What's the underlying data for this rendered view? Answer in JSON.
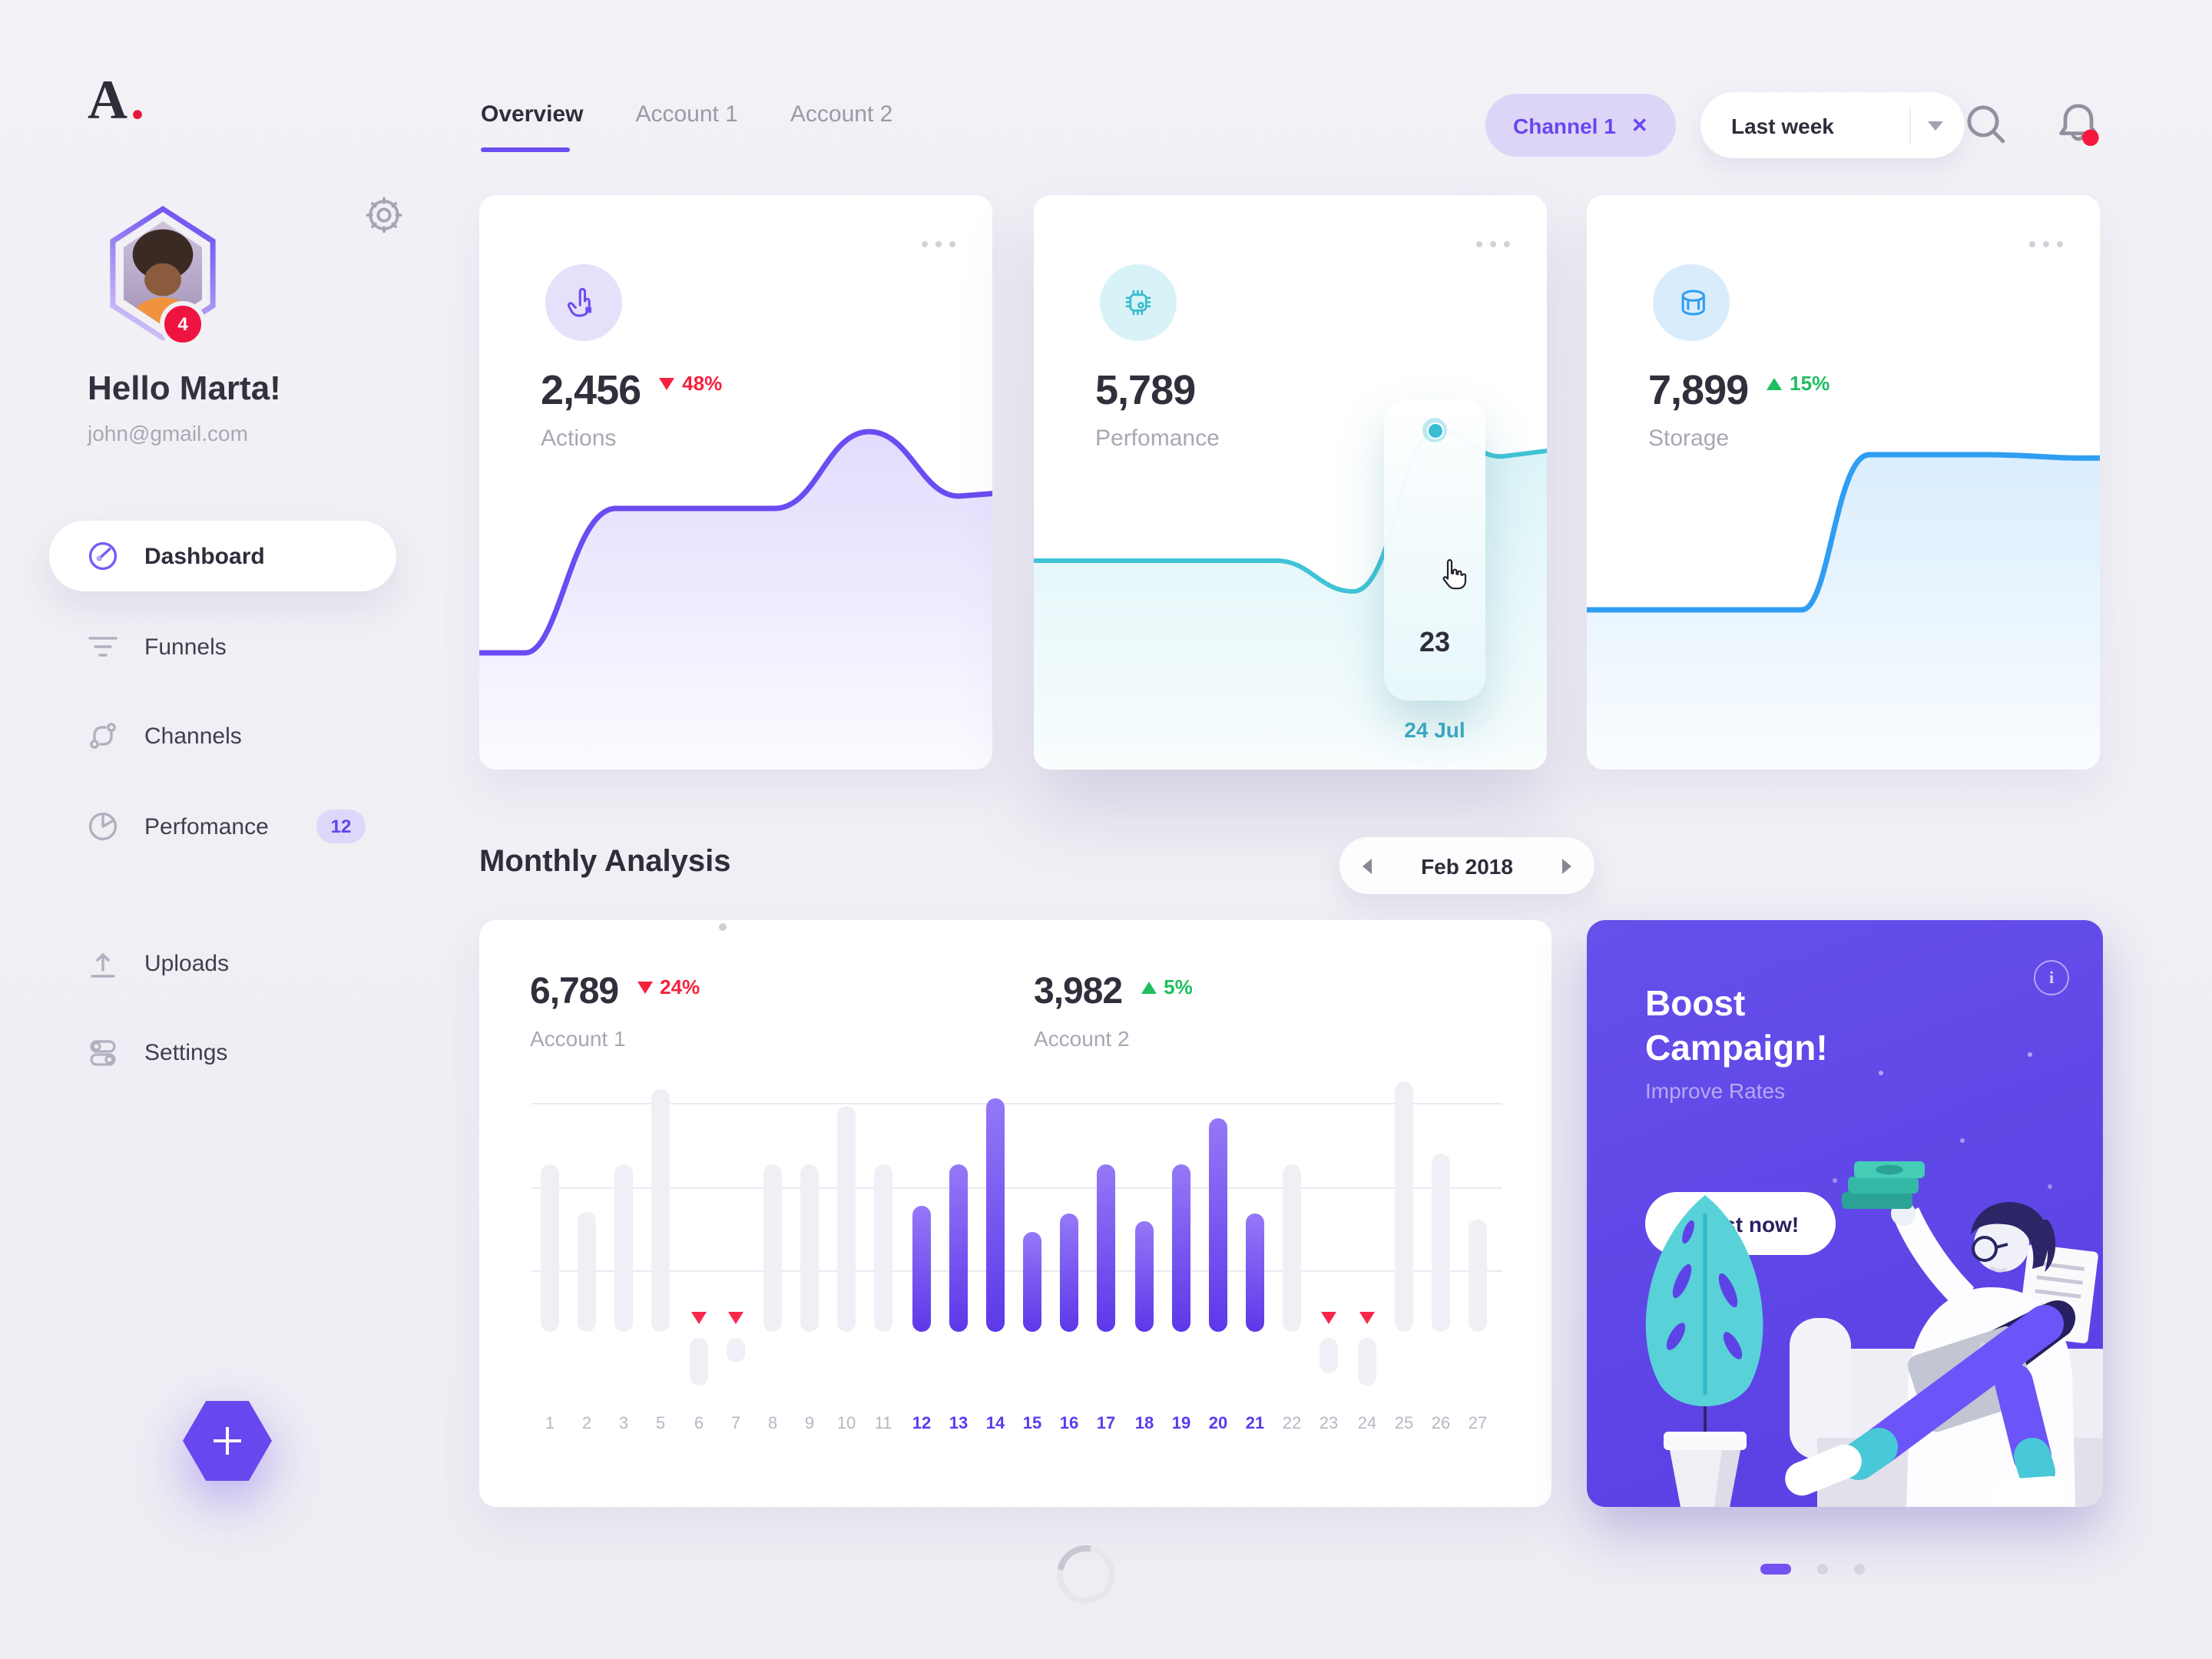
{
  "colors": {
    "accent": "#6a4cf1",
    "teal": "#45c6d8",
    "blue": "#2f9df2",
    "red": "#f5223d",
    "green": "#1fbe5f",
    "campaign_bg": "#5e44e6"
  },
  "brand": {
    "logo": "A",
    "dot": "."
  },
  "sidebar": {
    "greeting": "Hello Marta!",
    "email": "john@gmail.com",
    "avatar_badge": "4",
    "nav": [
      {
        "label": "Dashboard",
        "active": true
      },
      {
        "label": "Funnels"
      },
      {
        "label": "Channels"
      },
      {
        "label": "Perfomance",
        "badge": "12"
      },
      {
        "label": "Uploads"
      },
      {
        "label": "Settings"
      }
    ]
  },
  "topbar": {
    "tabs": [
      {
        "label": "Overview",
        "active": true
      },
      {
        "label": "Account 1"
      },
      {
        "label": "Account 2"
      }
    ],
    "filter_chip": {
      "label": "Channel 1",
      "close": "✕"
    },
    "period_select": {
      "value": "Last week"
    }
  },
  "stat_cards": [
    {
      "value": "2,456",
      "delta": "48%",
      "delta_dir": "down",
      "label": "Actions"
    },
    {
      "value": "5,789",
      "label": "Perfomance",
      "tooltip": {
        "value": "23",
        "date": "24 Jul"
      }
    },
    {
      "value": "7,899",
      "delta": "15%",
      "delta_dir": "up",
      "label": "Storage"
    }
  ],
  "monthly": {
    "title": "Monthly Analysis",
    "period": "Feb 2018",
    "accounts": [
      {
        "value": "6,789",
        "delta": "24%",
        "delta_dir": "down",
        "label": "Account 1"
      },
      {
        "value": "3,982",
        "delta": "5%",
        "delta_dir": "up",
        "label": "Account 2"
      }
    ],
    "chart_data": {
      "type": "bar",
      "unit": "percent_of_max_height",
      "gridlines": 3,
      "bars": [
        {
          "day": "1",
          "value": 67
        },
        {
          "day": "2",
          "value": 48
        },
        {
          "day": "3",
          "value": 67
        },
        {
          "day": "5",
          "value": 97
        },
        {
          "day": "6",
          "value": -19,
          "marker": true
        },
        {
          "day": "7",
          "value": -10,
          "marker": true
        },
        {
          "day": "8",
          "value": 67
        },
        {
          "day": "9",
          "value": 67
        },
        {
          "day": "10",
          "value": 90
        },
        {
          "day": "11",
          "value": 67
        },
        {
          "day": "12",
          "value": 50,
          "highlight": true
        },
        {
          "day": "13",
          "value": 67,
          "highlight": true
        },
        {
          "day": "14",
          "value": 93,
          "highlight": true
        },
        {
          "day": "15",
          "value": 40,
          "highlight": true
        },
        {
          "day": "16",
          "value": 47,
          "highlight": true
        },
        {
          "day": "17",
          "value": 67,
          "highlight": true
        },
        {
          "day": "18",
          "value": 44,
          "highlight": true
        },
        {
          "day": "19",
          "value": 67,
          "highlight": true
        },
        {
          "day": "20",
          "value": 85,
          "highlight": true
        },
        {
          "day": "21",
          "value": 47,
          "highlight": true
        },
        {
          "day": "22",
          "value": 67
        },
        {
          "day": "23",
          "value": -14,
          "marker": true
        },
        {
          "day": "24",
          "value": -19,
          "marker": true
        },
        {
          "day": "25",
          "value": 100
        },
        {
          "day": "26",
          "value": 71
        },
        {
          "day": "27",
          "value": 45
        }
      ]
    }
  },
  "campaign": {
    "title_line1": "Boost",
    "title_line2": "Campaign!",
    "subtitle": "Improve Rates",
    "button": "Boost now!",
    "info_glyph": "i"
  }
}
